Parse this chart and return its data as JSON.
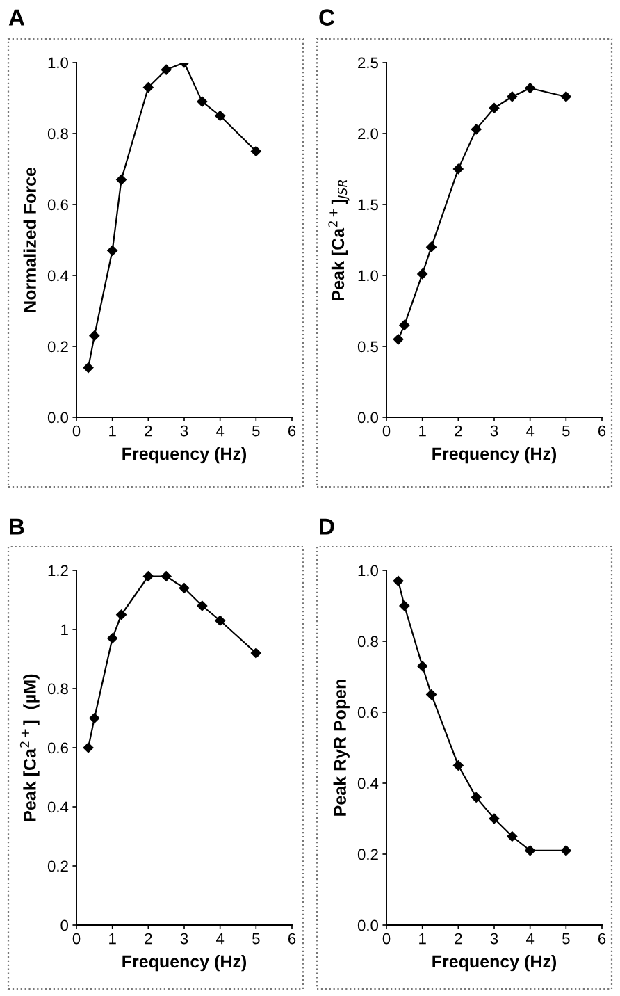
{
  "chart_data": [
    {
      "type": "line",
      "title": "A",
      "xlabel": "Frequency (Hz)",
      "ylabel": "Normalized Force",
      "x": [
        0.33,
        0.5,
        1,
        1.25,
        2,
        2.5,
        3,
        3.5,
        4,
        5
      ],
      "series": [
        {
          "color": "#000000",
          "values": [
            0.14,
            0.23,
            0.47,
            0.67,
            0.93,
            0.98,
            1.0,
            0.89,
            0.85,
            0.75
          ]
        }
      ],
      "xlim": [
        0,
        6
      ],
      "xticks": [
        0,
        1,
        2,
        3,
        4,
        5,
        6
      ],
      "ylim": [
        0,
        1.0
      ],
      "yticks": [
        {
          "value": 0,
          "label": "0.0"
        },
        0.2,
        0.4,
        0.6,
        0.8,
        {
          "value": 1.0,
          "label": "1.0"
        }
      ],
      "marker": "diamond",
      "line_style": "solid"
    },
    {
      "type": "line",
      "title": "B",
      "xlabel": "Frequency (Hz)",
      "ylabel": "Peak [Ca$^{2+}$]  (µM)",
      "x": [
        0.33,
        0.5,
        1,
        1.25,
        2,
        2.5,
        3,
        3.5,
        4,
        5
      ],
      "series": [
        {
          "color": "#000000",
          "values": [
            0.6,
            0.7,
            0.97,
            1.05,
            1.18,
            1.18,
            1.14,
            1.08,
            1.03,
            0.92
          ]
        }
      ],
      "xlim": [
        0,
        6
      ],
      "xticks": [
        0,
        1,
        2,
        3,
        4,
        5,
        6
      ],
      "ylim": [
        0,
        1.2
      ],
      "yticks": [
        0,
        0.2,
        0.4,
        0.6,
        0.8,
        1,
        1.2
      ],
      "marker": "diamond",
      "line_style": "solid"
    },
    {
      "type": "line",
      "title": "C",
      "xlabel": "Frequency (Hz)",
      "ylabel": "Peak [Ca$^{2+}$]$_{JSR}$",
      "x": [
        0.33,
        0.5,
        1,
        1.25,
        2,
        2.5,
        3,
        3.5,
        4,
        5
      ],
      "series": [
        {
          "color": "#000000",
          "values": [
            0.55,
            0.65,
            1.01,
            1.2,
            1.75,
            2.03,
            2.18,
            2.26,
            2.32,
            2.26
          ]
        }
      ],
      "xlim": [
        0,
        6
      ],
      "xticks": [
        0,
        1,
        2,
        3,
        4,
        5,
        6
      ],
      "ylim": [
        0,
        2.5
      ],
      "yticks": [
        {
          "value": 0,
          "label": "0.0"
        },
        0.5,
        {
          "value": 1.0,
          "label": "1.0"
        },
        1.5,
        {
          "value": 2.0,
          "label": "2.0"
        },
        2.5
      ],
      "marker": "diamond",
      "line_style": "solid"
    },
    {
      "type": "line",
      "title": "D",
      "xlabel": "Frequency (Hz)",
      "ylabel": "Peak RyR Popen",
      "x": [
        0.33,
        0.5,
        1,
        1.25,
        2,
        2.5,
        3,
        3.5,
        4,
        5
      ],
      "series": [
        {
          "color": "#000000",
          "values": [
            0.97,
            0.9,
            0.73,
            0.65,
            0.45,
            0.36,
            0.3,
            0.25,
            0.21,
            0.21
          ]
        }
      ],
      "xlim": [
        0,
        6
      ],
      "xticks": [
        0,
        1,
        2,
        3,
        4,
        5,
        6
      ],
      "ylim": [
        0,
        1.0
      ],
      "yticks": [
        {
          "value": 0,
          "label": "0.0"
        },
        0.2,
        0.4,
        0.6,
        0.8,
        {
          "value": 1.0,
          "label": "1.0"
        }
      ],
      "marker": "diamond",
      "line_style": "solid"
    }
  ]
}
